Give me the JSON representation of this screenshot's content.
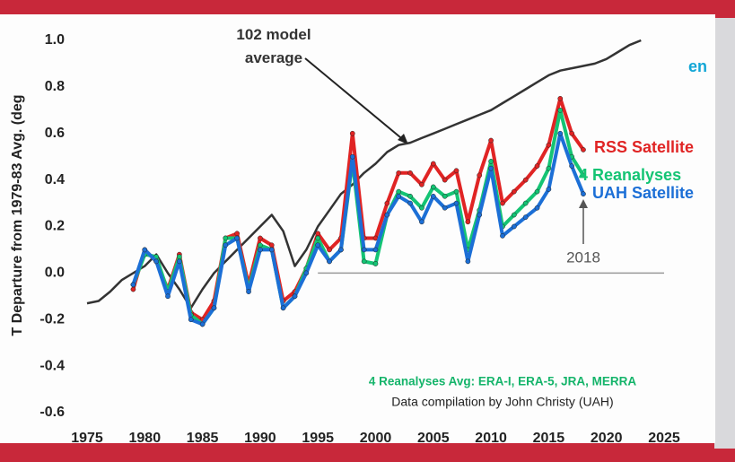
{
  "chart_data": {
    "type": "line",
    "y_label": "T Departure from 1979-83 Avg. (deg",
    "corner_text": "en",
    "note": "4 Reanalyses Avg: ERA-I, ERA-5, JRA, MERRA",
    "credit": "Data compilation by John Christy (UAH)",
    "arrow_label": "2018",
    "x": [
      1975,
      1976,
      1977,
      1978,
      1979,
      1980,
      1981,
      1982,
      1983,
      1984,
      1985,
      1986,
      1987,
      1988,
      1989,
      1990,
      1991,
      1992,
      1993,
      1994,
      1995,
      1996,
      1997,
      1998,
      1999,
      2000,
      2001,
      2002,
      2003,
      2004,
      2005,
      2006,
      2007,
      2008,
      2009,
      2010,
      2011,
      2012,
      2013,
      2014,
      2015,
      2016,
      2017,
      2018,
      2019,
      2020,
      2021,
      2022,
      2023
    ],
    "series": [
      {
        "name": "102 model average",
        "color": "#333333",
        "markers": false,
        "values": [
          -0.13,
          -0.12,
          -0.08,
          -0.03,
          0.0,
          0.03,
          0.08,
          0.0,
          -0.07,
          -0.15,
          -0.07,
          0.0,
          0.05,
          0.1,
          0.15,
          0.2,
          0.25,
          0.18,
          0.03,
          0.1,
          0.2,
          0.27,
          0.34,
          0.38,
          0.43,
          0.47,
          0.52,
          0.55,
          0.56,
          0.58,
          0.6,
          0.62,
          0.64,
          0.66,
          0.68,
          0.7,
          0.73,
          0.76,
          0.79,
          0.82,
          0.85,
          0.87,
          0.88,
          0.89,
          0.9,
          0.92,
          0.95,
          0.98,
          1.0
        ]
      },
      {
        "name": "RSS Satellite",
        "color": "#e02424",
        "markers": true,
        "values": [
          null,
          null,
          null,
          null,
          -0.07,
          0.1,
          0.05,
          -0.07,
          0.08,
          -0.17,
          -0.2,
          -0.12,
          0.15,
          0.17,
          -0.05,
          0.15,
          0.12,
          -0.12,
          -0.08,
          0.02,
          0.17,
          0.1,
          0.15,
          0.6,
          0.15,
          0.15,
          0.3,
          0.43,
          0.43,
          0.38,
          0.47,
          0.4,
          0.44,
          0.22,
          0.42,
          0.57,
          0.3,
          0.35,
          0.4,
          0.46,
          0.55,
          0.75,
          0.6,
          0.53,
          null,
          null,
          null,
          null,
          null
        ]
      },
      {
        "name": "4 Reanalyses",
        "color": "#14c474",
        "markers": true,
        "values": [
          null,
          null,
          null,
          null,
          -0.05,
          0.08,
          0.07,
          -0.08,
          0.07,
          -0.18,
          -0.22,
          -0.15,
          0.15,
          0.15,
          -0.07,
          0.12,
          0.1,
          -0.15,
          -0.1,
          0.02,
          0.15,
          0.05,
          0.1,
          0.48,
          0.05,
          0.04,
          0.25,
          0.35,
          0.33,
          0.28,
          0.37,
          0.33,
          0.35,
          0.1,
          0.27,
          0.48,
          0.2,
          0.25,
          0.3,
          0.35,
          0.45,
          0.7,
          0.5,
          0.42,
          null,
          null,
          null,
          null,
          null
        ]
      },
      {
        "name": "UAH Satellite",
        "color": "#1c6fd6",
        "markers": true,
        "values": [
          null,
          null,
          null,
          null,
          -0.05,
          0.1,
          0.05,
          -0.1,
          0.05,
          -0.2,
          -0.22,
          -0.15,
          0.12,
          0.15,
          -0.08,
          0.1,
          0.1,
          -0.15,
          -0.1,
          0.0,
          0.12,
          0.05,
          0.1,
          0.5,
          0.1,
          0.1,
          0.25,
          0.33,
          0.3,
          0.22,
          0.33,
          0.28,
          0.3,
          0.05,
          0.25,
          0.45,
          0.16,
          0.2,
          0.24,
          0.28,
          0.36,
          0.6,
          0.46,
          0.34,
          null,
          null,
          null,
          null,
          null
        ]
      }
    ],
    "xlim": [
      1975,
      2025
    ],
    "xticks": [
      1975,
      1980,
      1985,
      1990,
      1995,
      2000,
      2005,
      2010,
      2015,
      2020,
      2025
    ],
    "ylim": [
      -0.6,
      1.0
    ],
    "yticks": [
      {
        "value": -0.6,
        "label": "-0.6"
      },
      {
        "value": -0.4,
        "label": "-0.4"
      },
      {
        "value": -0.2,
        "label": "-0.2"
      },
      {
        "value": 0,
        "label": "0.0"
      },
      {
        "value": 0.2,
        "label": "0.2"
      },
      {
        "value": 0.4,
        "label": "0.4"
      },
      {
        "value": 0.6,
        "label": "0.6"
      },
      {
        "value": 0.8,
        "label": "0.8"
      },
      {
        "value": 1.0,
        "label": "1.0"
      }
    ]
  }
}
